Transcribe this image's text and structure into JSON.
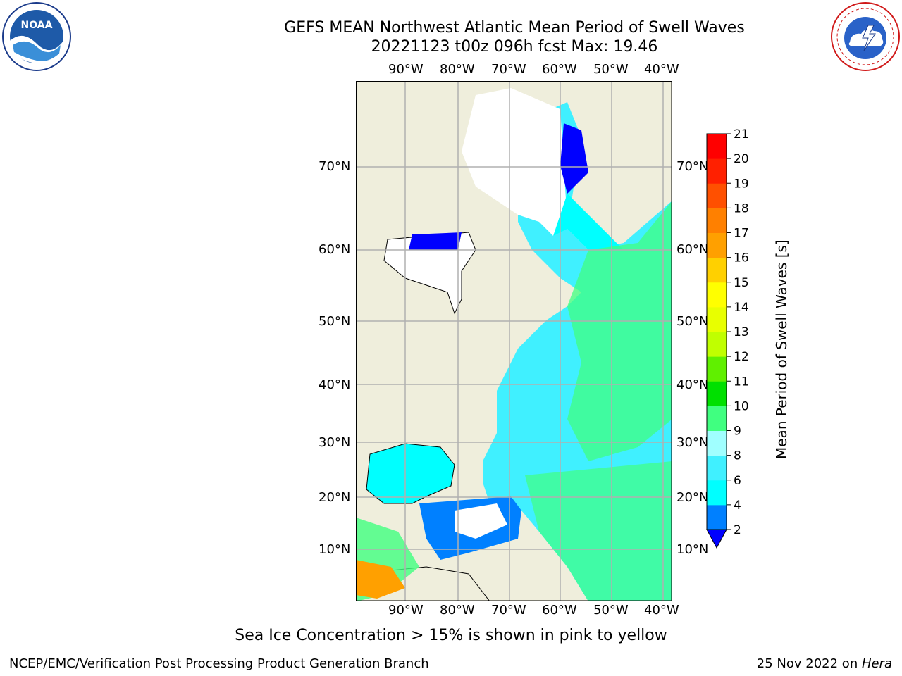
{
  "title": {
    "line1": "GEFS MEAN Northwest Atlantic Mean Period of Swell Waves",
    "line2": "20221123 t00z 096h fcst   Max: 19.46"
  },
  "logos": {
    "left": {
      "icon": "noaa-logo",
      "text": "NOAA",
      "ring_text": "NATIONAL OCEANIC AND ATMOSPHERIC ADMINISTRATION · U.S. DEPARTMENT OF COMMERCE"
    },
    "right": {
      "icon": "nws-logo",
      "ring_text": "NATIONAL WEATHER SERVICE"
    }
  },
  "map": {
    "lon_ticks": [
      "90°W",
      "80°W",
      "70°W",
      "60°W",
      "50°W",
      "40°W"
    ],
    "lat_ticks": [
      "70°N",
      "60°N",
      "50°N",
      "40°N",
      "30°N",
      "20°N",
      "10°N"
    ],
    "land_color": "#efeedc",
    "ocean_note": "swell period shading"
  },
  "colorbar": {
    "label": "Mean Period of Swell Waves [s]",
    "ticks": [
      "2",
      "4",
      "6",
      "8",
      "9",
      "10",
      "11",
      "12",
      "13",
      "14",
      "15",
      "16",
      "17",
      "18",
      "19",
      "20",
      "21"
    ],
    "colors": [
      "#0000ff",
      "#0080ff",
      "#00ffff",
      "#40f0ff",
      "#a0ffff",
      "#40ff80",
      "#00e000",
      "#60f000",
      "#c0ff00",
      "#e8ff00",
      "#ffff00",
      "#ffd000",
      "#ffa000",
      "#ff8000",
      "#ff5000",
      "#ff2000",
      "#ff0000"
    ]
  },
  "caption": "Sea Ice Concentration > 15% is shown in pink to yellow",
  "footer": {
    "left": "NCEP/EMC/Verification Post Processing Product Generation Branch",
    "right_date": "25 Nov 2022 on ",
    "right_host": "Hera"
  }
}
